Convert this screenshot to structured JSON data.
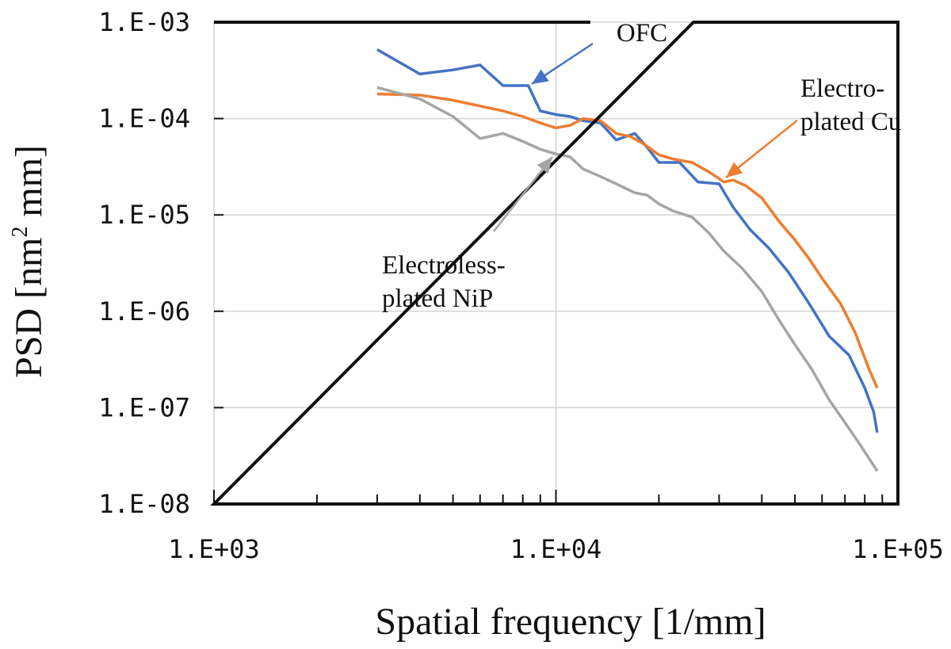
{
  "chart_data": {
    "type": "line",
    "xlabel": "Spatial frequency [1/mm]",
    "ylabel_prefix": "PSD [nm",
    "ylabel_sup": "2",
    "ylabel_suffix": " mm]",
    "x_scale": "log",
    "y_scale": "log",
    "xlim": [
      1000,
      100000
    ],
    "ylim": [
      1e-08,
      0.001
    ],
    "x_ticks": [
      {
        "value": 1000,
        "label": "1.E+03"
      },
      {
        "value": 10000,
        "label": "1.E+04"
      },
      {
        "value": 100000,
        "label": "1.E+05"
      }
    ],
    "y_ticks": [
      {
        "value": 0.001,
        "label": "1.E-03"
      },
      {
        "value": 0.0001,
        "label": "1.E-04"
      },
      {
        "value": 1e-05,
        "label": "1.E-05"
      },
      {
        "value": 1e-06,
        "label": "1.E-06"
      },
      {
        "value": 1e-07,
        "label": "1.E-07"
      },
      {
        "value": 1e-08,
        "label": "1.E-08"
      }
    ],
    "grid": true,
    "colors": {
      "ofc": "#4472C4",
      "cu": "#ED7D31",
      "nip": "#A5A5A5"
    },
    "annotations": {
      "ofc": [
        "OFC"
      ],
      "cu": [
        "Electro-",
        "plated Cu"
      ],
      "nip": [
        "Electroless-",
        "plated NiP"
      ]
    },
    "series": [
      {
        "key": "ofc",
        "x": [
          3000,
          4000,
          5000,
          6000,
          7000,
          8300,
          9000,
          10000,
          11000,
          12000,
          13500,
          15000,
          17000,
          18500,
          20000,
          23000,
          26000,
          30000,
          33000,
          37000,
          42000,
          48000,
          55000,
          63000,
          72000,
          80000,
          85000,
          87000
        ],
        "y": [
          0.00052,
          0.00029,
          0.00032,
          0.00036,
          0.00022,
          0.00022,
          0.00012,
          0.00011,
          0.000105,
          9.5e-05,
          9e-05,
          6e-05,
          7e-05,
          5e-05,
          3.5e-05,
          3.5e-05,
          2.2e-05,
          2.1e-05,
          1.2e-05,
          7e-06,
          4.5e-06,
          2.5e-06,
          1.2e-06,
          5.5e-07,
          3.5e-07,
          1.6e-07,
          9e-08,
          5.5e-08
        ]
      },
      {
        "key": "cu",
        "x": [
          3000,
          4000,
          5000,
          6000,
          7000,
          8000,
          9000,
          10000,
          11000,
          12000,
          13500,
          15000,
          16500,
          18000,
          20000,
          22000,
          25000,
          28000,
          31000,
          33000,
          36000,
          40000,
          45000,
          50000,
          55000,
          60000,
          68000,
          75000,
          82000,
          87000
        ],
        "y": [
          0.00018,
          0.000175,
          0.000155,
          0.000135,
          0.00012,
          0.000105,
          9e-05,
          8e-05,
          8.5e-05,
          0.0001,
          9.5e-05,
          7e-05,
          6.5e-05,
          5.5e-05,
          4.2e-05,
          3.8e-05,
          3.5e-05,
          2.8e-05,
          2.2e-05,
          2.3e-05,
          2e-05,
          1.5e-05,
          8.5e-06,
          5.5e-06,
          3.5e-06,
          2.2e-06,
          1.2e-06,
          6e-07,
          2.6e-07,
          1.6e-07
        ]
      },
      {
        "key": "nip",
        "x": [
          3000,
          4000,
          5000,
          6000,
          7000,
          8000,
          9000,
          10000,
          11000,
          12000,
          13500,
          15000,
          17000,
          18500,
          20000,
          22000,
          25000,
          28000,
          31000,
          35000,
          40000,
          45000,
          50000,
          56000,
          63000,
          70000,
          78000,
          85000,
          87000
        ],
        "y": [
          0.00021,
          0.00016,
          0.000105,
          6.2e-05,
          7e-05,
          5.8e-05,
          4.8e-05,
          4.3e-05,
          4e-05,
          3e-05,
          2.5e-05,
          2.1e-05,
          1.7e-05,
          1.6e-05,
          1.3e-05,
          1.1e-05,
          9.5e-06,
          6.5e-06,
          4.2e-06,
          2.8e-06,
          1.6e-06,
          8e-07,
          4.5e-07,
          2.5e-07,
          1.2e-07,
          7e-08,
          4e-08,
          2.5e-08,
          2.2e-08
        ]
      }
    ]
  }
}
